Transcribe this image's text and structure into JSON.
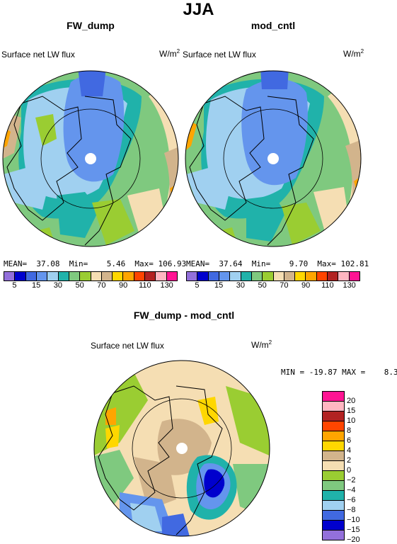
{
  "title": "JJA",
  "panels": [
    {
      "title": "FW_dump",
      "variable": "Surface net LW flux",
      "units_base": "W/m",
      "units_exp": "2",
      "stats_text": "MEAN=  37.08  Min=    5.46  Max= 106.93"
    },
    {
      "title": "mod_cntl",
      "variable": "Surface net LW flux",
      "units_base": "W/m",
      "units_exp": "2",
      "stats_text": "MEAN=  37.64  Min=    9.70  Max= 102.81"
    }
  ],
  "abs_colorbar": {
    "colors": [
      "#9370DB",
      "#0000CD",
      "#4169E1",
      "#6495ED",
      "#A0D0F0",
      "#20B2AA",
      "#7FC97F",
      "#9ACD32",
      "#F5DEB3",
      "#D2B48C",
      "#FFD700",
      "#FFA500",
      "#FF4500",
      "#B22222",
      "#FFB6C1",
      "#FF1493"
    ],
    "labels": [
      "5",
      "15",
      "30",
      "50",
      "70",
      "90",
      "110",
      "130"
    ]
  },
  "diff_panel": {
    "title": "FW_dump - mod_cntl",
    "variable": "Surface net LW flux",
    "units_base": "W/m",
    "units_exp": "2",
    "minmax_text": "MIN = -19.87 MAX =    8.30"
  },
  "diff_colorbar": {
    "colors": [
      "#FF1493",
      "#FFB6C1",
      "#B22222",
      "#FF4500",
      "#FFA500",
      "#FFD700",
      "#D2B48C",
      "#F5DEB3",
      "#9ACD32",
      "#7FC97F",
      "#20B2AA",
      "#A0D0F0",
      "#4169E1",
      "#0000CD",
      "#9370DB"
    ],
    "labels": [
      "20",
      "15",
      "10",
      "8",
      "6",
      "4",
      "2",
      "0",
      "−2",
      "−4",
      "−6",
      "−8",
      "−10",
      "−15",
      "−20"
    ]
  }
}
